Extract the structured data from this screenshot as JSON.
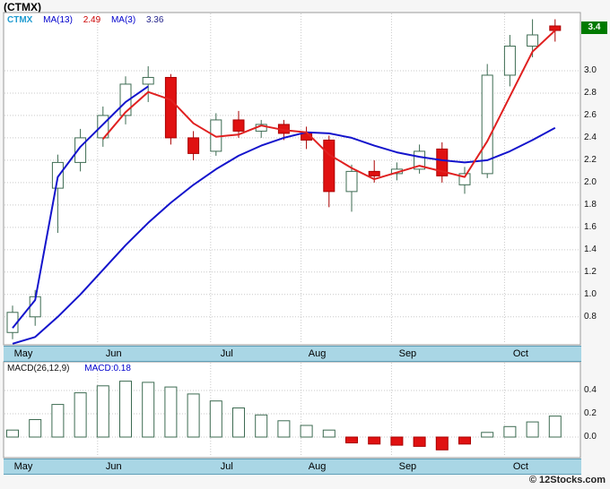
{
  "page": {
    "title": "(CTMX)",
    "copyright": "© 12Stocks.com"
  },
  "legend": {
    "symbol": "CTMX",
    "ma13_label": "MA(13)",
    "ma13_value": "2.49",
    "ma3_label": "MA(3)",
    "ma3_value": "3.36"
  },
  "macd_header": {
    "label": "MACD(26,12,9)",
    "value": "MACD:0.18"
  },
  "axes": {
    "last_price": "3.4",
    "months": [
      "May",
      "Jun",
      "Jul",
      "Aug",
      "Sep",
      "Oct"
    ]
  },
  "colors": {
    "ma13": "#1414cc",
    "ma3": "#e02020",
    "grid": "#c9c9c9",
    "border": "#999999",
    "up_fill": "#ffffff",
    "up_stroke": "#3d6b52",
    "down_fill": "#e01111",
    "down_stroke": "#aa0000",
    "band_bg": "#a9d6e5",
    "last_price_bg": "#007a00",
    "legend_symbol": "#1f9bd0",
    "macd_value_color": "#0000cc"
  },
  "chart_data": [
    {
      "type": "candlestick",
      "title": "CTMX weekly price with moving averages MA(13) and MA(3)",
      "ylim": [
        0.55,
        3.52
      ],
      "y_ticks": [
        3.0,
        2.8,
        2.6,
        2.4,
        2.2,
        2.0,
        1.8,
        1.6,
        1.4,
        1.2,
        1.0,
        0.8
      ],
      "last_price_value": 3.38,
      "x_axis": {
        "categories": [
          "May",
          "Jun",
          "Jul",
          "Aug",
          "Sep",
          "Oct"
        ],
        "month_start_indices": [
          0,
          4,
          9,
          13,
          17,
          22
        ]
      },
      "candles_format": "[open, high, low, close]",
      "candles": [
        [
          0.66,
          0.9,
          0.6,
          0.84
        ],
        [
          0.8,
          1.04,
          0.72,
          0.98
        ],
        [
          1.95,
          2.25,
          1.55,
          2.18
        ],
        [
          2.18,
          2.48,
          2.1,
          2.4
        ],
        [
          2.4,
          2.68,
          2.32,
          2.6
        ],
        [
          2.6,
          2.95,
          2.52,
          2.88
        ],
        [
          2.88,
          3.04,
          2.72,
          2.94
        ],
        [
          2.94,
          2.97,
          2.34,
          2.4
        ],
        [
          2.4,
          2.46,
          2.2,
          2.26
        ],
        [
          2.28,
          2.62,
          2.24,
          2.56
        ],
        [
          2.56,
          2.64,
          2.4,
          2.46
        ],
        [
          2.46,
          2.56,
          2.4,
          2.52
        ],
        [
          2.52,
          2.56,
          2.38,
          2.44
        ],
        [
          2.44,
          2.5,
          2.3,
          2.38
        ],
        [
          2.38,
          2.42,
          1.78,
          1.92
        ],
        [
          1.92,
          2.16,
          1.74,
          2.1
        ],
        [
          2.1,
          2.2,
          2.0,
          2.06
        ],
        [
          2.08,
          2.18,
          2.02,
          2.12
        ],
        [
          2.12,
          2.34,
          2.08,
          2.28
        ],
        [
          2.3,
          2.36,
          2.0,
          2.06
        ],
        [
          1.98,
          2.14,
          1.9,
          2.08
        ],
        [
          2.08,
          3.06,
          2.04,
          2.96
        ],
        [
          2.96,
          3.32,
          2.86,
          3.22
        ],
        [
          3.22,
          3.46,
          3.12,
          3.32
        ],
        [
          3.4,
          3.46,
          3.26,
          3.36
        ]
      ],
      "series": [
        {
          "name": "ma13-line",
          "color_key": "ma13",
          "start_index": 0,
          "values": [
            0.56,
            0.62,
            0.8,
            1.0,
            1.22,
            1.44,
            1.64,
            1.82,
            1.98,
            2.12,
            2.24,
            2.33,
            2.4,
            2.45,
            2.44,
            2.4,
            2.33,
            2.27,
            2.23,
            2.2,
            2.18,
            2.2,
            2.28,
            2.38,
            2.49
          ]
        },
        {
          "name": "ma13-fast-segment",
          "color_key": "ma13",
          "start_index": 0,
          "values": [
            0.7,
            0.95,
            2.05,
            2.32,
            2.52,
            2.72,
            2.86
          ]
        },
        {
          "name": "ma3-line",
          "color_key": "ma3",
          "start_index": 4,
          "values": [
            2.39,
            2.63,
            2.81,
            2.74,
            2.53,
            2.41,
            2.43,
            2.51,
            2.47,
            2.45,
            2.25,
            2.13,
            2.03,
            2.09,
            2.15,
            2.1,
            2.05,
            2.37,
            2.77,
            3.17,
            3.36
          ]
        }
      ]
    },
    {
      "type": "bar",
      "title": "MACD(26,12,9) histogram",
      "ylim": [
        -0.18,
        0.65
      ],
      "y_ticks": [
        0.4,
        0.2,
        0.0
      ],
      "current_value": 0.18,
      "values": [
        0.06,
        0.15,
        0.28,
        0.38,
        0.44,
        0.48,
        0.47,
        0.43,
        0.37,
        0.31,
        0.25,
        0.19,
        0.14,
        0.1,
        0.06,
        -0.05,
        -0.06,
        -0.07,
        -0.08,
        -0.11,
        -0.06,
        0.04,
        0.09,
        0.13,
        0.18
      ]
    }
  ]
}
